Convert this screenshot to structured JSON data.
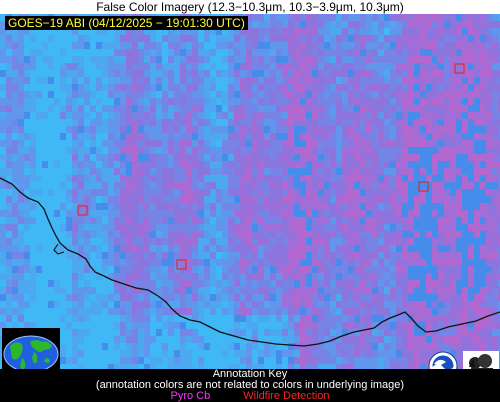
{
  "header": {
    "title": "False Color Imagery (12.3−10.3μm, 10.3−3.9μm, 10.3μm)",
    "satellite_label": "GOES−19 ABI (04/12/2025 − 19:01:30 UTC)"
  },
  "key": {
    "title": "Annotation Key",
    "note": "(annotation colors are not related to colors in underlying image)",
    "pyro_label": "Pyro Cb",
    "wildfire_label": "Wildfire Detection"
  },
  "colors": {
    "pyro": "#ff33ff",
    "wildfire": "#ff2222",
    "sat_label_text": "#ffff33",
    "base_blue": "#3fb8f5"
  },
  "icons": [
    "globe-logo",
    "noaa-logo",
    "cimss-logo"
  ]
}
